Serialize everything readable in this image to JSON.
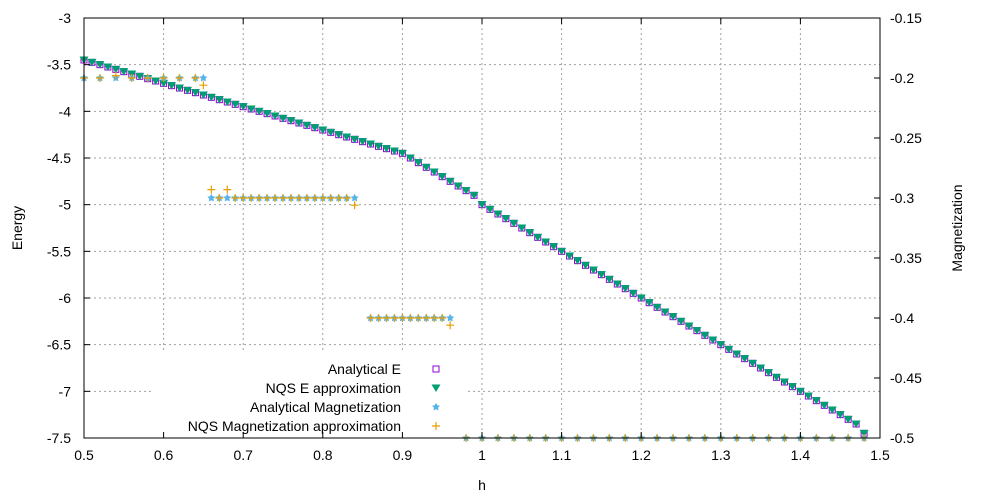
{
  "chart_data": {
    "type": "scatter",
    "xlabel": "h",
    "ylabel": "Energy",
    "y2label": "Magnetization",
    "xlim": [
      0.5,
      1.5
    ],
    "ylim": [
      -7.5,
      -3
    ],
    "y2lim": [
      -0.5,
      -0.15
    ],
    "xticks": [
      "0.5",
      "0.6",
      "0.7",
      "0.8",
      "0.9",
      "1",
      "1.1",
      "1.2",
      "1.3",
      "1.4",
      "1.5"
    ],
    "yticks": [
      "-3",
      "-3.5",
      "-4",
      "-4.5",
      "-5",
      "-5.5",
      "-6",
      "-6.5",
      "-7",
      "-7.5"
    ],
    "y2ticks": [
      "-0.15",
      "-0.2",
      "-0.25",
      "-0.3",
      "-0.35",
      "-0.4",
      "-0.45",
      "-0.5"
    ],
    "grid": true,
    "legend_position": "bottom-center",
    "series": [
      {
        "name": "Analytical E",
        "axis": "y",
        "marker": "open-square",
        "color": "#9400d3",
        "x": [
          0.5,
          0.51,
          0.52,
          0.53,
          0.54,
          0.55,
          0.56,
          0.57,
          0.58,
          0.59,
          0.6,
          0.61,
          0.62,
          0.63,
          0.64,
          0.65,
          0.66,
          0.67,
          0.68,
          0.69,
          0.7,
          0.71,
          0.72,
          0.73,
          0.74,
          0.75,
          0.76,
          0.77,
          0.78,
          0.79,
          0.8,
          0.81,
          0.82,
          0.83,
          0.84,
          0.85,
          0.86,
          0.87,
          0.88,
          0.89,
          0.9,
          0.91,
          0.92,
          0.93,
          0.94,
          0.95,
          0.96,
          0.97,
          0.98,
          0.99,
          1.0,
          1.01,
          1.02,
          1.03,
          1.04,
          1.05,
          1.06,
          1.07,
          1.08,
          1.09,
          1.1,
          1.11,
          1.12,
          1.13,
          1.14,
          1.15,
          1.16,
          1.17,
          1.18,
          1.19,
          1.2,
          1.21,
          1.22,
          1.23,
          1.24,
          1.25,
          1.26,
          1.27,
          1.28,
          1.29,
          1.3,
          1.31,
          1.32,
          1.33,
          1.34,
          1.35,
          1.36,
          1.37,
          1.38,
          1.39,
          1.4,
          1.41,
          1.42,
          1.43,
          1.44,
          1.45,
          1.46,
          1.47,
          1.48
        ],
        "y": [
          -3.45,
          -3.475,
          -3.5,
          -3.525,
          -3.55,
          -3.575,
          -3.6,
          -3.625,
          -3.65,
          -3.675,
          -3.7,
          -3.725,
          -3.75,
          -3.775,
          -3.8,
          -3.825,
          -3.85,
          -3.875,
          -3.9,
          -3.925,
          -3.95,
          -3.975,
          -4.0,
          -4.025,
          -4.05,
          -4.075,
          -4.1,
          -4.125,
          -4.15,
          -4.175,
          -4.2,
          -4.225,
          -4.25,
          -4.275,
          -4.3,
          -4.325,
          -4.35,
          -4.375,
          -4.4,
          -4.425,
          -4.45,
          -4.5,
          -4.55,
          -4.6,
          -4.65,
          -4.7,
          -4.75,
          -4.8,
          -4.85,
          -4.9,
          -5.0,
          -5.05,
          -5.1,
          -5.15,
          -5.2,
          -5.25,
          -5.3,
          -5.35,
          -5.4,
          -5.45,
          -5.5,
          -5.55,
          -5.6,
          -5.65,
          -5.7,
          -5.75,
          -5.8,
          -5.85,
          -5.9,
          -5.95,
          -6.0,
          -6.05,
          -6.1,
          -6.15,
          -6.2,
          -6.25,
          -6.3,
          -6.35,
          -6.4,
          -6.45,
          -6.5,
          -6.55,
          -6.6,
          -6.65,
          -6.7,
          -6.75,
          -6.8,
          -6.85,
          -6.9,
          -6.95,
          -7.0,
          -7.05,
          -7.1,
          -7.15,
          -7.2,
          -7.25,
          -7.3,
          -7.35,
          -7.45
        ]
      },
      {
        "name": "NQS E approximation",
        "axis": "y",
        "marker": "filled-triangle-down",
        "color": "#009e73",
        "x": [
          0.5,
          0.51,
          0.52,
          0.53,
          0.54,
          0.55,
          0.56,
          0.57,
          0.58,
          0.59,
          0.6,
          0.61,
          0.62,
          0.63,
          0.64,
          0.65,
          0.66,
          0.67,
          0.68,
          0.69,
          0.7,
          0.71,
          0.72,
          0.73,
          0.74,
          0.75,
          0.76,
          0.77,
          0.78,
          0.79,
          0.8,
          0.81,
          0.82,
          0.83,
          0.84,
          0.85,
          0.86,
          0.87,
          0.88,
          0.89,
          0.9,
          0.91,
          0.92,
          0.93,
          0.94,
          0.95,
          0.96,
          0.97,
          0.98,
          0.99,
          1.0,
          1.01,
          1.02,
          1.03,
          1.04,
          1.05,
          1.06,
          1.07,
          1.08,
          1.09,
          1.1,
          1.11,
          1.12,
          1.13,
          1.14,
          1.15,
          1.16,
          1.17,
          1.18,
          1.19,
          1.2,
          1.21,
          1.22,
          1.23,
          1.24,
          1.25,
          1.26,
          1.27,
          1.28,
          1.29,
          1.3,
          1.31,
          1.32,
          1.33,
          1.34,
          1.35,
          1.36,
          1.37,
          1.38,
          1.39,
          1.4,
          1.41,
          1.42,
          1.43,
          1.44,
          1.45,
          1.46,
          1.47,
          1.48
        ],
        "y": [
          -3.45,
          -3.475,
          -3.5,
          -3.525,
          -3.55,
          -3.575,
          -3.6,
          -3.625,
          -3.65,
          -3.675,
          -3.7,
          -3.725,
          -3.75,
          -3.775,
          -3.8,
          -3.825,
          -3.85,
          -3.875,
          -3.9,
          -3.925,
          -3.95,
          -3.975,
          -4.0,
          -4.025,
          -4.05,
          -4.075,
          -4.1,
          -4.125,
          -4.15,
          -4.175,
          -4.2,
          -4.225,
          -4.25,
          -4.275,
          -4.3,
          -4.325,
          -4.35,
          -4.375,
          -4.4,
          -4.425,
          -4.45,
          -4.5,
          -4.55,
          -4.6,
          -4.65,
          -4.7,
          -4.75,
          -4.8,
          -4.85,
          -4.9,
          -5.0,
          -5.05,
          -5.1,
          -5.15,
          -5.2,
          -5.25,
          -5.3,
          -5.35,
          -5.4,
          -5.45,
          -5.5,
          -5.55,
          -5.6,
          -5.65,
          -5.7,
          -5.75,
          -5.8,
          -5.85,
          -5.9,
          -5.95,
          -6.0,
          -6.05,
          -6.1,
          -6.15,
          -6.2,
          -6.25,
          -6.3,
          -6.35,
          -6.4,
          -6.45,
          -6.5,
          -6.55,
          -6.6,
          -6.65,
          -6.7,
          -6.75,
          -6.8,
          -6.85,
          -6.9,
          -6.95,
          -7.0,
          -7.05,
          -7.1,
          -7.15,
          -7.2,
          -7.25,
          -7.3,
          -7.35,
          -7.45
        ]
      },
      {
        "name": "Analytical Magnetization",
        "axis": "y2",
        "marker": "filled-star",
        "color": "#56b4e9",
        "x": [
          0.5,
          0.52,
          0.54,
          0.56,
          0.58,
          0.6,
          0.62,
          0.64,
          0.65,
          0.66,
          0.67,
          0.68,
          0.69,
          0.7,
          0.71,
          0.72,
          0.73,
          0.74,
          0.75,
          0.76,
          0.77,
          0.78,
          0.79,
          0.8,
          0.81,
          0.82,
          0.83,
          0.84,
          0.86,
          0.87,
          0.88,
          0.89,
          0.9,
          0.91,
          0.92,
          0.93,
          0.94,
          0.95,
          0.96,
          0.98,
          1.0,
          1.02,
          1.04,
          1.06,
          1.08,
          1.1,
          1.12,
          1.14,
          1.16,
          1.18,
          1.2,
          1.22,
          1.24,
          1.26,
          1.28,
          1.3,
          1.32,
          1.34,
          1.36,
          1.38,
          1.4,
          1.42,
          1.44,
          1.46,
          1.48
        ],
        "y": [
          -0.2,
          -0.2,
          -0.2,
          -0.2,
          -0.2,
          -0.2,
          -0.2,
          -0.2,
          -0.2,
          -0.3,
          -0.3,
          -0.3,
          -0.3,
          -0.3,
          -0.3,
          -0.3,
          -0.3,
          -0.3,
          -0.3,
          -0.3,
          -0.3,
          -0.3,
          -0.3,
          -0.3,
          -0.3,
          -0.3,
          -0.3,
          -0.3,
          -0.4,
          -0.4,
          -0.4,
          -0.4,
          -0.4,
          -0.4,
          -0.4,
          -0.4,
          -0.4,
          -0.4,
          -0.4,
          -0.5,
          -0.5,
          -0.5,
          -0.5,
          -0.5,
          -0.5,
          -0.5,
          -0.5,
          -0.5,
          -0.5,
          -0.5,
          -0.5,
          -0.5,
          -0.5,
          -0.5,
          -0.5,
          -0.5,
          -0.5,
          -0.5,
          -0.5,
          -0.5,
          -0.5,
          -0.5,
          -0.5,
          -0.5,
          -0.5
        ]
      },
      {
        "name": "NQS Magnetization approximation",
        "axis": "y2",
        "marker": "plus",
        "color": "#e69f00",
        "x": [
          0.5,
          0.52,
          0.54,
          0.56,
          0.58,
          0.6,
          0.62,
          0.64,
          0.65,
          0.66,
          0.67,
          0.68,
          0.69,
          0.7,
          0.71,
          0.72,
          0.73,
          0.74,
          0.75,
          0.76,
          0.77,
          0.78,
          0.79,
          0.8,
          0.81,
          0.82,
          0.83,
          0.84,
          0.86,
          0.87,
          0.88,
          0.89,
          0.9,
          0.91,
          0.92,
          0.93,
          0.94,
          0.95,
          0.96,
          0.98,
          1.0,
          1.02,
          1.04,
          1.06,
          1.08,
          1.1,
          1.12,
          1.14,
          1.16,
          1.18,
          1.2,
          1.22,
          1.24,
          1.26,
          1.28,
          1.3,
          1.32,
          1.34,
          1.36,
          1.38,
          1.4,
          1.42,
          1.44,
          1.46,
          1.48
        ],
        "y": [
          -0.2,
          -0.2,
          -0.198,
          -0.2,
          -0.2,
          -0.2,
          -0.2,
          -0.2,
          -0.206,
          -0.293,
          -0.3,
          -0.293,
          -0.3,
          -0.3,
          -0.3,
          -0.3,
          -0.3,
          -0.3,
          -0.3,
          -0.3,
          -0.3,
          -0.3,
          -0.3,
          -0.3,
          -0.3,
          -0.3,
          -0.3,
          -0.306,
          -0.4,
          -0.4,
          -0.4,
          -0.4,
          -0.4,
          -0.4,
          -0.4,
          -0.4,
          -0.4,
          -0.4,
          -0.406,
          -0.5,
          -0.5,
          -0.5,
          -0.5,
          -0.5,
          -0.5,
          -0.5,
          -0.5,
          -0.5,
          -0.5,
          -0.5,
          -0.5,
          -0.5,
          -0.5,
          -0.5,
          -0.5,
          -0.5,
          -0.5,
          -0.5,
          -0.5,
          -0.5,
          -0.5,
          -0.5,
          -0.5,
          -0.5,
          -0.5
        ]
      }
    ]
  }
}
